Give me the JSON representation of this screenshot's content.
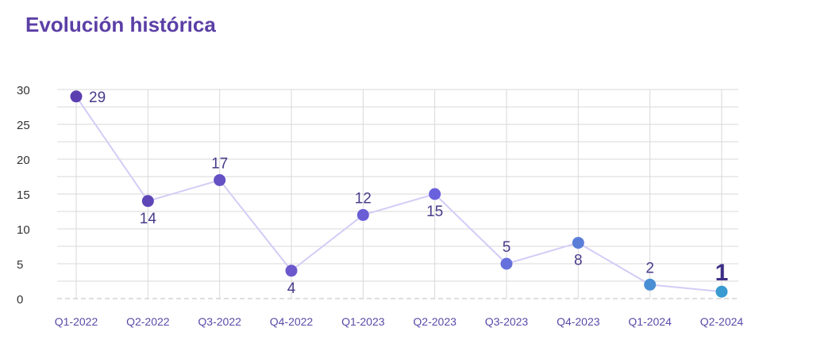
{
  "title": "Evolución histórica",
  "chart_data": {
    "type": "line",
    "title": "Evolución histórica",
    "xlabel": "",
    "ylabel": "",
    "categories": [
      "Q1-2022",
      "Q2-2022",
      "Q3-2022",
      "Q4-2022",
      "Q1-2023",
      "Q2-2023",
      "Q3-2023",
      "Q4-2023",
      "Q1-2024",
      "Q2-2024"
    ],
    "series": [
      {
        "values": [
          29,
          14,
          17,
          4,
          12,
          15,
          5,
          8,
          2,
          1
        ]
      }
    ],
    "ylim": [
      0,
      30
    ],
    "yticks": [
      0,
      5,
      10,
      15,
      20,
      25,
      30
    ],
    "grid": true,
    "label_positions": [
      "right",
      "below",
      "above",
      "below",
      "above",
      "below",
      "above",
      "below",
      "above",
      "above"
    ],
    "point_colors": [
      "#5b3fb0",
      "#5e46b8",
      "#6550c4",
      "#6a58cc",
      "#6a5ed6",
      "#6a62dc",
      "#6670dc",
      "#5a7ed8",
      "#4a8ed4",
      "#3a9ad2"
    ],
    "label_colors": [
      "#4a3a8a",
      "#4a3a8a",
      "#4a3a8a",
      "#4a3a8a",
      "#4a3a8a",
      "#4a3a8a",
      "#4a3a8a",
      "#4a3a8a",
      "#4a3a8a",
      "#3c2f86"
    ],
    "tick_color": "#5a4aa8",
    "line_color": "#d4ccf6",
    "grid_color": "#d9d9d9",
    "baseline_color": "#bdbdbd",
    "highlight_last": true
  }
}
